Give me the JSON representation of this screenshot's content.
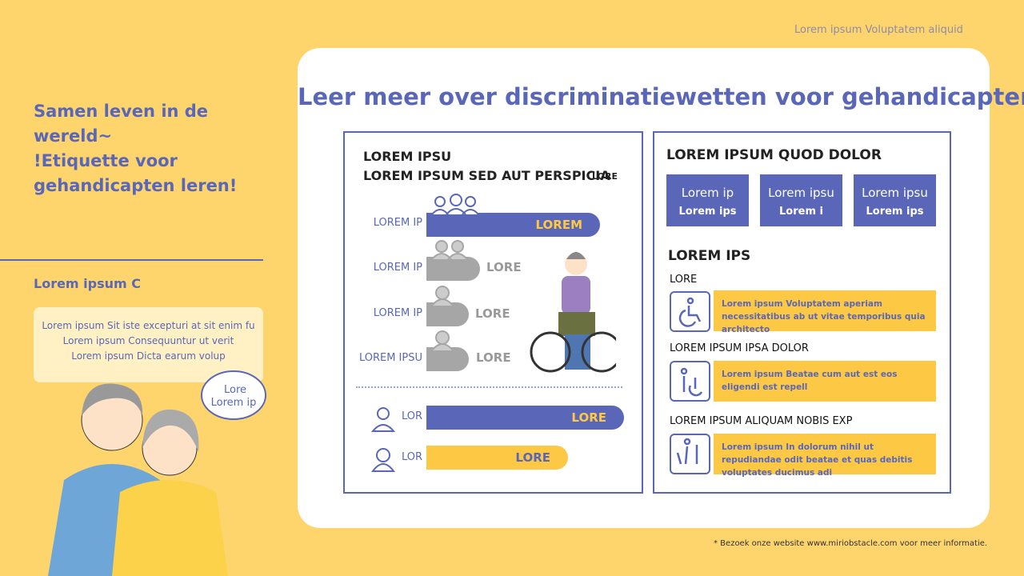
{
  "header": {
    "tagline": "Lorem ipsum Voluptatem aliquid"
  },
  "sidebar": {
    "title_lines": [
      "Samen leven in de",
      "wereld~",
      "!Etiquette voor",
      "gehandicapten leren!"
    ],
    "subtitle": "Lorem ipsum C",
    "note_lines": [
      "Lorem ipsum Sit iste excepturi at sit enim fu",
      "Lorem ipsum Consequuntur ut verit",
      "Lorem ipsum Dicta earum volup"
    ],
    "bubble_lines": [
      "Lore",
      "Lorem ip"
    ]
  },
  "main": {
    "title": "Leer meer over discriminatiewetten voor gehandicapten!",
    "left_panel": {
      "heading_lines": [
        "LOREM IPSU",
        "LOREM IPSUM SED AUT PERSPICIA"
      ],
      "corner_label": "LORE",
      "rows": [
        {
          "label": "LOREM IP",
          "bar_text": "LOREM"
        },
        {
          "label": "LOREM IP",
          "bar_text": "LORE"
        },
        {
          "label": "LOREM IP",
          "bar_text": "LORE"
        },
        {
          "label": "LOREM IPSU",
          "bar_text": "LORE"
        }
      ],
      "gender_rows": [
        {
          "label": "LOR",
          "bar_text": "LORE"
        },
        {
          "label": "LOR",
          "bar_text": "LORE"
        }
      ]
    },
    "right_panel": {
      "heading": "LOREM IPSUM QUOD DOLOR",
      "tiles": [
        {
          "line1": "Lorem ip",
          "line2": "Lorem ips"
        },
        {
          "line1": "Lorem ipsu",
          "line2": "Lorem i"
        },
        {
          "line1": "Lorem ipsu",
          "line2": "Lorem ips"
        }
      ],
      "section_title": "LOREM IPS",
      "items": [
        {
          "label": "LORE",
          "text": "Lorem ipsum Voluptatem aperiam necessitatibus ab ut vitae temporibus quia architecto"
        },
        {
          "label": "LOREM IPSUM IPSA DOLOR",
          "text": "Lorem ipsum Beatae cum aut est eos eligendi est repell"
        },
        {
          "label": "LOREM IPSUM ALIQUAM NOBIS EXP",
          "text": "Lorem ipsum In dolorum nihil ut repudiandae odit beatae et quas debitis voluptates ducimus adi"
        }
      ]
    }
  },
  "footer": "* Bezoek onze website www.miriobstacle.com voor meer informatie."
}
